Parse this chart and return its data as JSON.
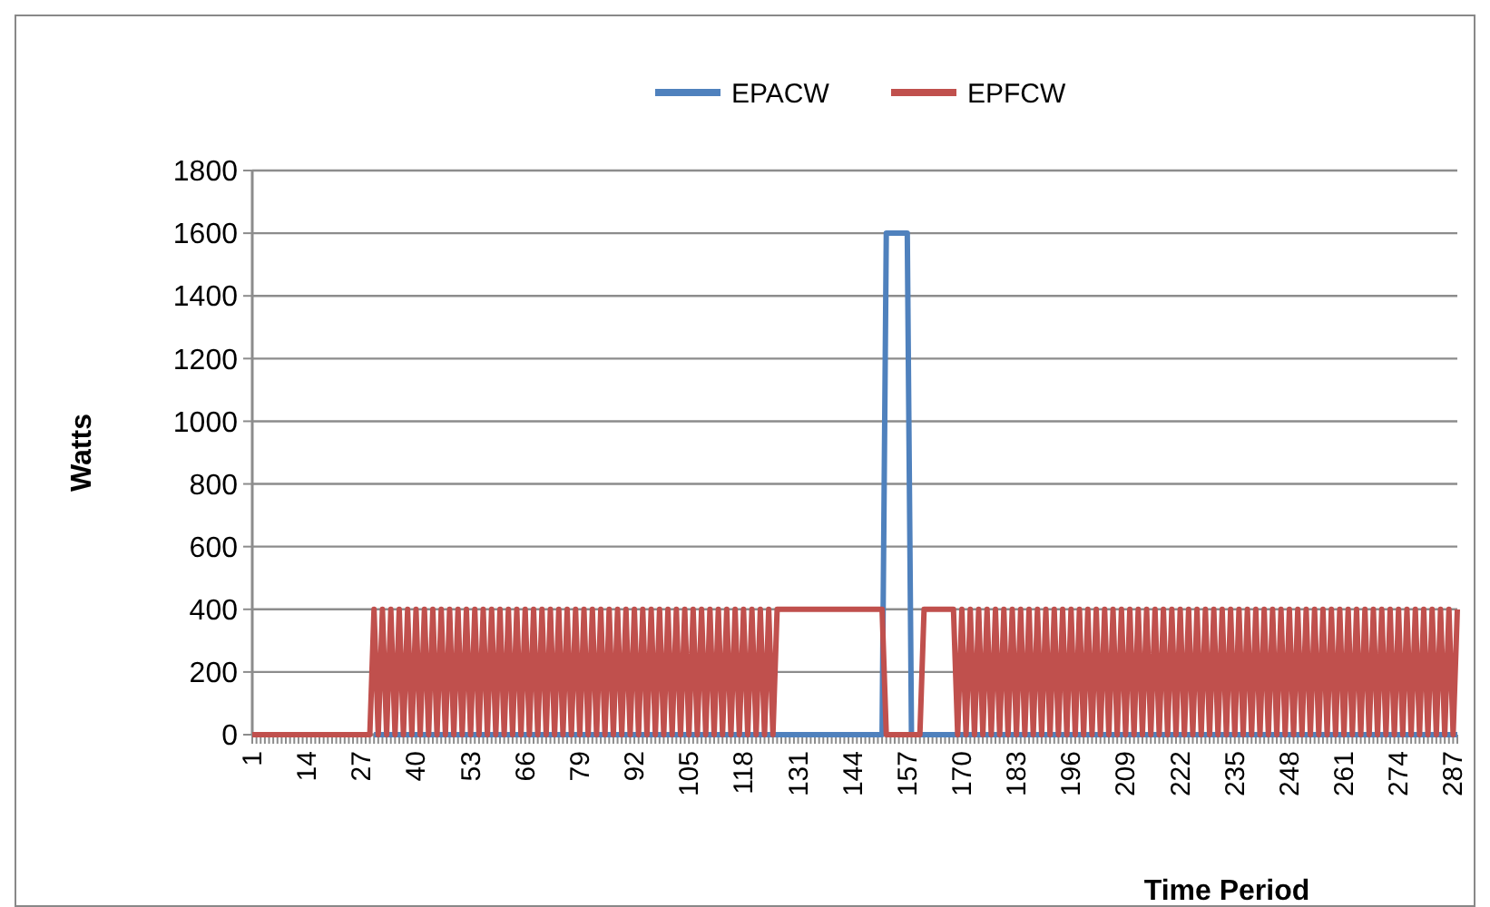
{
  "chart_data": {
    "type": "line",
    "xlabel": "Time Period",
    "ylabel": "Watts",
    "ylim": [
      0,
      1800
    ],
    "yticks": [
      0,
      200,
      400,
      600,
      800,
      1000,
      1200,
      1400,
      1600,
      1800
    ],
    "grid": "y",
    "legend": "top",
    "marker": "none",
    "line_style": "solid",
    "categories": [
      "1",
      null,
      null,
      null,
      null,
      null,
      null,
      null,
      null,
      null,
      null,
      null,
      null,
      "14",
      null,
      null,
      null,
      null,
      null,
      null,
      null,
      null,
      null,
      null,
      null,
      null,
      "27",
      null,
      null,
      null,
      null,
      null,
      null,
      null,
      null,
      null,
      null,
      null,
      null,
      "40",
      null,
      null,
      null,
      null,
      null,
      null,
      null,
      null,
      null,
      null,
      null,
      null,
      "53",
      null,
      null,
      null,
      null,
      null,
      null,
      null,
      null,
      null,
      null,
      null,
      null,
      "66",
      null,
      null,
      null,
      null,
      null,
      null,
      null,
      null,
      null,
      null,
      null,
      null,
      "79",
      null,
      null,
      null,
      null,
      null,
      null,
      null,
      null,
      null,
      null,
      null,
      null,
      "92",
      null,
      null,
      null,
      null,
      null,
      null,
      null,
      null,
      null,
      null,
      null,
      null,
      "105",
      null,
      null,
      null,
      null,
      null,
      null,
      null,
      null,
      null,
      null,
      null,
      null,
      "118",
      null,
      null,
      null,
      null,
      null,
      null,
      null,
      null,
      null,
      null,
      null,
      null,
      "131",
      null,
      null,
      null,
      null,
      null,
      null,
      null,
      null,
      null,
      null,
      null,
      null,
      "144",
      null,
      null,
      null,
      null,
      null,
      null,
      null,
      null,
      null,
      null,
      null,
      null,
      "157",
      null,
      null,
      null,
      null,
      null,
      null,
      null,
      null,
      null,
      null,
      null,
      null,
      "170",
      null,
      null,
      null,
      null,
      null,
      null,
      null,
      null,
      null,
      null,
      null,
      null,
      "183",
      null,
      null,
      null,
      null,
      null,
      null,
      null,
      null,
      null,
      null,
      null,
      null,
      "196",
      null,
      null,
      null,
      null,
      null,
      null,
      null,
      null,
      null,
      null,
      null,
      null,
      "209",
      null,
      null,
      null,
      null,
      null,
      null,
      null,
      null,
      null,
      null,
      null,
      null,
      "222",
      null,
      null,
      null,
      null,
      null,
      null,
      null,
      null,
      null,
      null,
      null,
      null,
      "235",
      null,
      null,
      null,
      null,
      null,
      null,
      null,
      null,
      null,
      null,
      null,
      null,
      "248",
      null,
      null,
      null,
      null,
      null,
      null,
      null,
      null,
      null,
      null,
      null,
      null,
      "261",
      null,
      null,
      null,
      null,
      null,
      null,
      null,
      null,
      null,
      null,
      null,
      null,
      "274",
      null,
      null,
      null,
      null,
      null,
      null,
      null,
      null,
      null,
      null,
      null,
      null,
      "287",
      null
    ],
    "series": [
      {
        "name": "EPACW",
        "color": "#4f81bd",
        "values": [
          null,
          null,
          null,
          null,
          null,
          null,
          null,
          null,
          null,
          null,
          null,
          null,
          null,
          null,
          null,
          null,
          null,
          null,
          null,
          null,
          null,
          null,
          null,
          null,
          null,
          null,
          null,
          null,
          null,
          0,
          0,
          0,
          0,
          0,
          0,
          0,
          0,
          0,
          0,
          0,
          0,
          0,
          0,
          0,
          0,
          0,
          0,
          0,
          0,
          0,
          0,
          0,
          0,
          0,
          0,
          0,
          0,
          0,
          0,
          0,
          0,
          0,
          0,
          0,
          0,
          0,
          0,
          0,
          0,
          0,
          0,
          0,
          0,
          0,
          0,
          0,
          0,
          0,
          0,
          0,
          0,
          0,
          0,
          0,
          0,
          0,
          0,
          0,
          0,
          0,
          0,
          0,
          0,
          0,
          0,
          0,
          0,
          0,
          0,
          0,
          0,
          0,
          0,
          0,
          0,
          0,
          0,
          0,
          0,
          0,
          0,
          0,
          0,
          0,
          0,
          0,
          0,
          0,
          0,
          0,
          0,
          0,
          0,
          0,
          0,
          0,
          0,
          0,
          0,
          0,
          0,
          0,
          0,
          0,
          0,
          0,
          0,
          0,
          0,
          0,
          0,
          0,
          0,
          0,
          0,
          0,
          0,
          0,
          0,
          0,
          0,
          1600,
          1600,
          1600,
          1600,
          1600,
          1600,
          0,
          0,
          0,
          0,
          0,
          0,
          0,
          0,
          0,
          0,
          0,
          0,
          0,
          0,
          0,
          0,
          0,
          0,
          0,
          0,
          0,
          0,
          0,
          0,
          0,
          0,
          0,
          0,
          0,
          0,
          0,
          0,
          0,
          0,
          0,
          0,
          0,
          0,
          0,
          0,
          0,
          0,
          0,
          0,
          0,
          0,
          0,
          0,
          0,
          0,
          0,
          0,
          0,
          0,
          0,
          0,
          0,
          0,
          0,
          0,
          0,
          0,
          0,
          0,
          0,
          0,
          0,
          0,
          0,
          0,
          0,
          0,
          0,
          0,
          0,
          0,
          0,
          0,
          0,
          0,
          0,
          0,
          0,
          0,
          0,
          0,
          0,
          0,
          0,
          0,
          0,
          0,
          0,
          0,
          0,
          0,
          0,
          0,
          0,
          0,
          0,
          0,
          0,
          0,
          0,
          0,
          0,
          0,
          0,
          0,
          0,
          0,
          0,
          0,
          0,
          0,
          0,
          0,
          0,
          0,
          0,
          0,
          0,
          0,
          0,
          0,
          0,
          0,
          0,
          0,
          0
        ]
      },
      {
        "name": "EPFCW",
        "color": "#c0504d",
        "values": [
          0,
          0,
          0,
          0,
          0,
          0,
          0,
          0,
          0,
          0,
          0,
          0,
          0,
          0,
          0,
          0,
          0,
          0,
          0,
          0,
          0,
          0,
          0,
          0,
          0,
          0,
          0,
          0,
          0,
          400,
          0,
          400,
          0,
          400,
          0,
          400,
          0,
          400,
          0,
          400,
          0,
          400,
          0,
          400,
          0,
          400,
          0,
          400,
          0,
          400,
          0,
          400,
          0,
          400,
          0,
          400,
          0,
          400,
          0,
          400,
          0,
          400,
          0,
          400,
          0,
          400,
          0,
          400,
          0,
          400,
          0,
          400,
          0,
          400,
          0,
          400,
          0,
          400,
          0,
          400,
          0,
          400,
          0,
          400,
          0,
          400,
          0,
          400,
          0,
          400,
          0,
          400,
          0,
          400,
          0,
          400,
          0,
          400,
          0,
          400,
          0,
          400,
          0,
          400,
          0,
          400,
          0,
          400,
          0,
          400,
          0,
          400,
          0,
          400,
          0,
          400,
          0,
          400,
          0,
          400,
          0,
          400,
          0,
          400,
          0,
          400,
          400,
          400,
          400,
          400,
          400,
          400,
          400,
          400,
          400,
          400,
          400,
          400,
          400,
          400,
          400,
          400,
          400,
          400,
          400,
          400,
          400,
          400,
          400,
          400,
          400,
          0,
          0,
          0,
          0,
          0,
          0,
          0,
          0,
          0,
          400,
          400,
          400,
          400,
          400,
          400,
          400,
          400,
          0,
          400,
          0,
          400,
          0,
          400,
          0,
          400,
          0,
          400,
          0,
          400,
          0,
          400,
          0,
          400,
          0,
          400,
          0,
          400,
          0,
          400,
          0,
          400,
          0,
          400,
          0,
          400,
          0,
          400,
          0,
          400,
          0,
          400,
          0,
          400,
          0,
          400,
          0,
          400,
          0,
          400,
          0,
          400,
          0,
          400,
          0,
          400,
          0,
          400,
          0,
          400,
          0,
          400,
          0,
          400,
          0,
          400,
          0,
          400,
          0,
          400,
          0,
          400,
          0,
          400,
          0,
          400,
          0,
          400,
          0,
          400,
          0,
          400,
          0,
          400,
          0,
          400,
          0,
          400,
          0,
          400,
          0,
          400,
          0,
          400,
          0,
          400,
          0,
          400,
          0,
          400,
          0,
          400,
          0,
          400,
          0,
          400,
          0,
          400,
          0,
          400,
          0,
          400,
          0,
          400,
          0,
          400,
          0,
          400,
          0,
          400,
          0,
          400,
          0,
          400,
          0,
          400,
          0,
          400
        ]
      }
    ]
  }
}
